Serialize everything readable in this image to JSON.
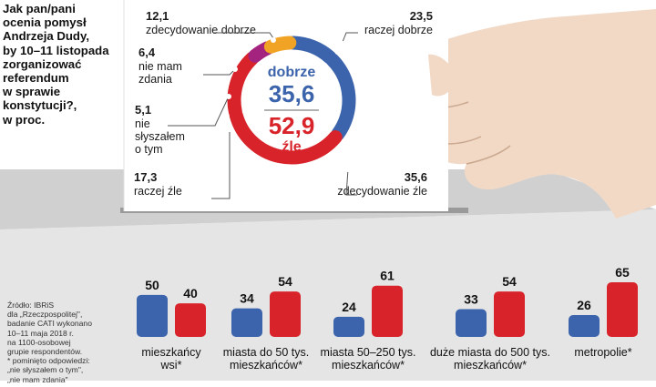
{
  "question": [
    "Jak pan/pani",
    "ocenia pomysł",
    "Andrzeja Dudy,",
    "by 10–11 listopada",
    "zorganizować",
    "referendum",
    "w sprawie",
    "konstytucji?,",
    "w proc."
  ],
  "source_note": [
    "Źródło: IBRiS",
    "dla „Rzeczpospolitej\",",
    "badanie CATI wykonano",
    "10–11 maja 2018 r.",
    "na 1100-osobowej",
    "grupie respondentów.",
    "* pominięto odpowiedzi:",
    "„nie słyszałem o tym\",",
    "„nie mam zdania\""
  ],
  "colors": {
    "blue": "#3c64ac",
    "red": "#d8232a",
    "orange": "#f0a324",
    "magenta": "#a3237e",
    "box_front": "#e5e5e5",
    "box_top": "#d0d0d0",
    "card": "#ffffff",
    "skin": "#f1d9c6"
  },
  "chart_data": [
    {
      "type": "pie",
      "slices": [
        {
          "label": "zdecydowanie dobrze",
          "value": 12.1,
          "color": "#3c64ac"
        },
        {
          "label": "raczej dobrze",
          "value": 23.5,
          "color": "#3c64ac"
        },
        {
          "label": "zdecydowanie źle",
          "value": 35.6,
          "color": "#d8232a"
        },
        {
          "label": "raczej źle",
          "value": 17.3,
          "color": "#d8232a"
        },
        {
          "label": "nie słyszałem o tym",
          "value": 5.1,
          "color": "#a3237e"
        },
        {
          "label": "nie mam zdania",
          "value": 6.4,
          "color": "#f0a324"
        }
      ],
      "labels": [
        {
          "value": "12,1",
          "lines": [
            "zdecydowanie dobrze"
          ]
        },
        {
          "value": "23,5",
          "lines": [
            "raczej dobrze"
          ]
        },
        {
          "value": "6,4",
          "lines": [
            "nie mam",
            "zdania"
          ]
        },
        {
          "value": "5,1",
          "lines": [
            "nie",
            "słyszałem",
            "o tym"
          ]
        },
        {
          "value": "17,3",
          "lines": [
            "raczej źle"
          ]
        },
        {
          "value": "35,6",
          "lines": [
            "zdecydowanie źle"
          ]
        }
      ],
      "center": {
        "good_label": "dobrze",
        "good_value": "35,6",
        "bad_value": "52,9",
        "bad_label": "źle"
      }
    },
    {
      "type": "bar",
      "categories": [
        [
          "mieszkańcy",
          "wsi*"
        ],
        [
          "miasta do 50 tys.",
          "mieszkańców*"
        ],
        [
          "miasta 50–250 tys.",
          "mieszkańców*"
        ],
        [
          "duże miasta do 500 tys.",
          "mieszkańców*"
        ],
        [
          "metropolie*"
        ]
      ],
      "series": [
        {
          "key": "good",
          "color": "#3c64ac",
          "values": [
            50,
            34,
            24,
            33,
            26
          ]
        },
        {
          "key": "bad",
          "color": "#d8232a",
          "values": [
            40,
            54,
            61,
            54,
            65
          ]
        }
      ],
      "ylim": [
        0,
        65
      ]
    }
  ]
}
